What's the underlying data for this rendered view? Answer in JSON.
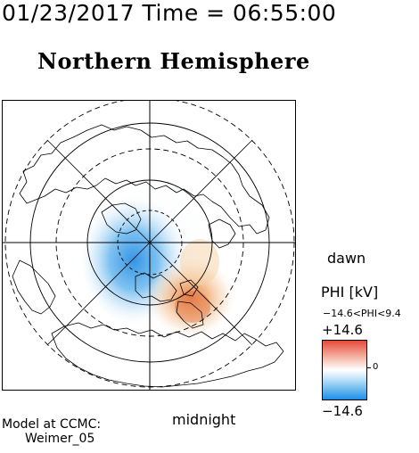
{
  "header": {
    "time_text": "01/23/2017 Time = 06:55:00"
  },
  "title": "Northern Hemisphere",
  "orientation": {
    "dawn_label": "dawn",
    "midnight_label": "midnight"
  },
  "colorbar": {
    "title": "PHI [kV]",
    "range_text": "−14.6<PHI<9.4",
    "max_label": "+14.6",
    "zero_label": "0",
    "min_label": "−14.6",
    "positive_color": "#e64a3a",
    "negative_color": "#1f8ee6"
  },
  "credit": {
    "line1": "Model at CCMC:",
    "line2": "Weimer_05"
  }
}
